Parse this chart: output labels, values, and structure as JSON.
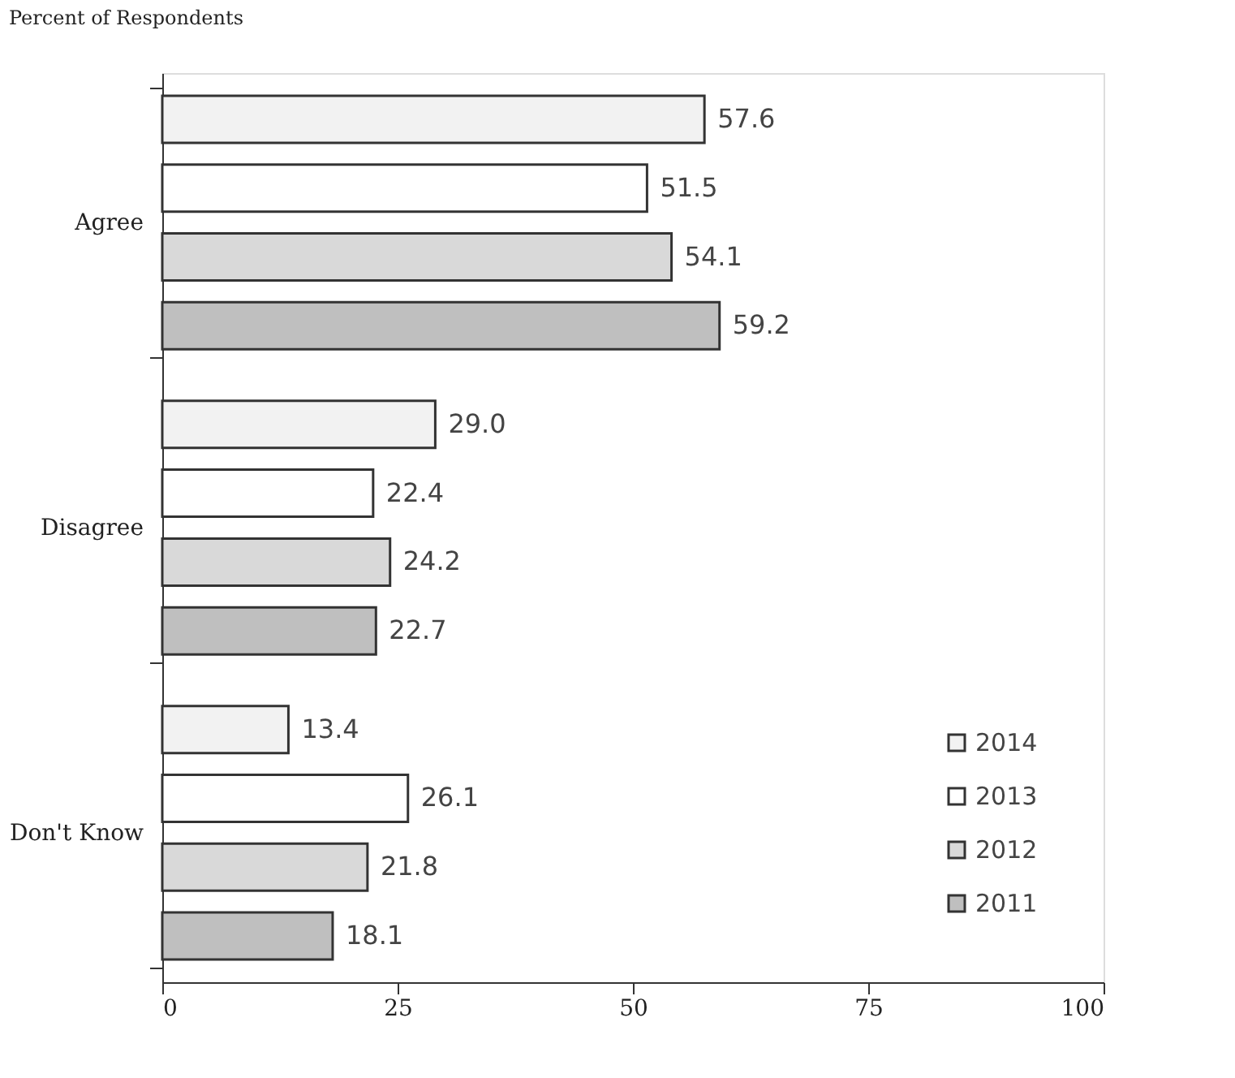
{
  "chart_data": {
    "type": "bar",
    "orientation": "horizontal",
    "title": "Percent of Respondents",
    "categories": [
      "Agree",
      "Disagree",
      "Don't Know"
    ],
    "series": [
      {
        "name": "2014",
        "color": "#f2f2f2",
        "values": [
          57.6,
          29.0,
          13.4
        ],
        "value_labels": [
          "57.6",
          "29.0",
          "13.4"
        ]
      },
      {
        "name": "2013",
        "color": "#ffffff",
        "values": [
          51.5,
          22.4,
          26.1
        ],
        "value_labels": [
          "51.5",
          "22.4",
          "26.1"
        ]
      },
      {
        "name": "2012",
        "color": "#d9d9d9",
        "values": [
          54.1,
          24.2,
          21.8
        ],
        "value_labels": [
          "54.1",
          "24.2",
          "21.8"
        ]
      },
      {
        "name": "2011",
        "color": "#bfbfbf",
        "values": [
          59.2,
          22.7,
          18.1
        ],
        "value_labels": [
          "59.2",
          "22.7",
          "18.1"
        ]
      }
    ],
    "xlim": [
      0,
      100
    ],
    "xticks": [
      0,
      25,
      50,
      75,
      100
    ],
    "grid": false,
    "legend": "bottom right"
  }
}
